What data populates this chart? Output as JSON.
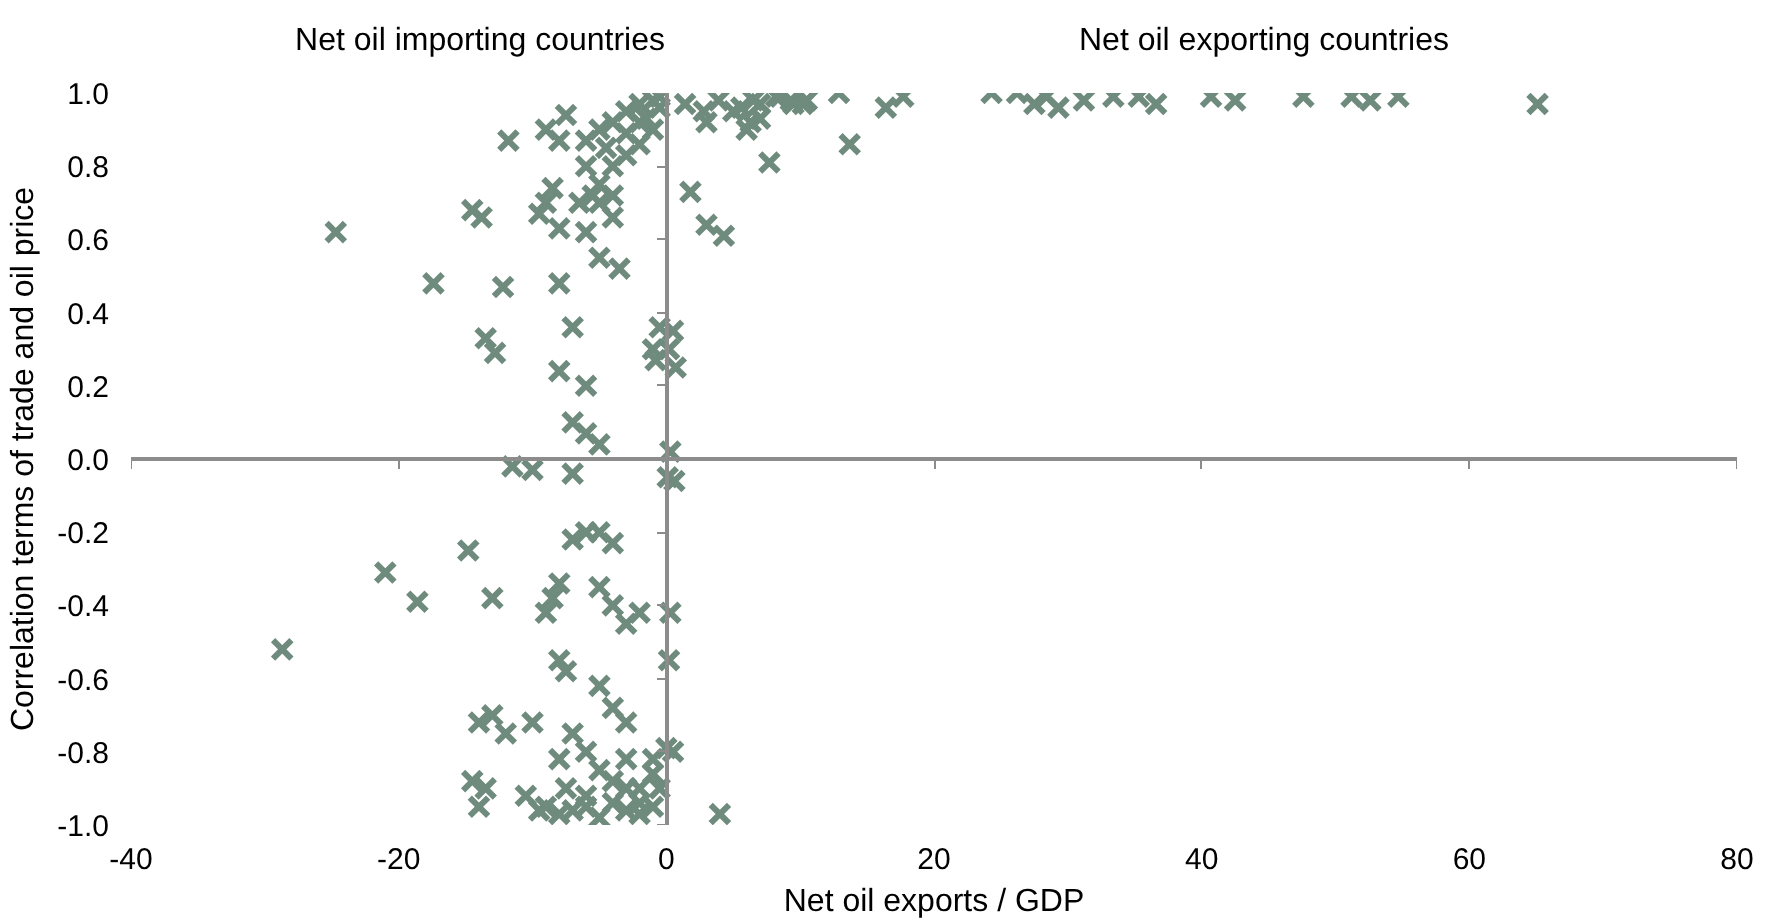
{
  "chart_data": {
    "type": "scatter",
    "xlabel": "Net oil exports / GDP",
    "ylabel": "Correlation terms of trade and oil price",
    "annotations": [
      "Net oil importing countries",
      "Net oil exporting countries"
    ],
    "xlim": [
      -40,
      80
    ],
    "xticks": [
      -40,
      -20,
      0,
      20,
      40,
      60,
      80
    ],
    "ylim": [
      -1.0,
      1.0
    ],
    "yticks": [
      {
        "value": -1.0,
        "label": "-1.0"
      },
      {
        "value": -0.8,
        "label": "-0.8"
      },
      {
        "value": -0.6,
        "label": "-0.6"
      },
      {
        "value": -0.4,
        "label": "-0.4"
      },
      {
        "value": -0.2,
        "label": "-0.2"
      },
      {
        "value": 0.0,
        "label": "0.0"
      },
      {
        "value": 0.2,
        "label": "0.2"
      },
      {
        "value": 0.4,
        "label": "0.4"
      },
      {
        "value": 0.6,
        "label": "0.6"
      },
      {
        "value": 0.8,
        "label": "0.8"
      },
      {
        "value": 1.0,
        "label": "1.0"
      }
    ],
    "marker": "cross",
    "series": [
      {
        "color": "#6e8b7d",
        "x": [
          1.4,
          2.8,
          3.9,
          5.6,
          6.3,
          7.0,
          8.2,
          9.3,
          10.2,
          12.9,
          13.7,
          16.4,
          17.7,
          24.3,
          26.2,
          27.5,
          28.4,
          29.3,
          31.2,
          33.4,
          35.3,
          36.6,
          40.7,
          42.5,
          47.6,
          51.2,
          52.6,
          54.7,
          65.1,
          3.0,
          5.0,
          6.0,
          6.5,
          7.0,
          7.7,
          8.5,
          9.5,
          10.5,
          1.8,
          3.0,
          4.3,
          0.5,
          0.2,
          0.7,
          0.3,
          0.1,
          0.6,
          0.2,
          4.0,
          0.5,
          0.3,
          -28.7,
          -24.7,
          -21.0,
          -18.6,
          -17.4,
          -14.5,
          -14.8,
          -13.8,
          -13.5,
          -12.8,
          -12.2,
          -13.0,
          -11.8,
          -11.5,
          -10.0,
          -14.0,
          -13.0,
          -12.0,
          -14.5,
          -14.0,
          -13.5,
          -10.0,
          -10.5,
          -9.5,
          -8.0,
          -7.0,
          -8.0,
          -6.0,
          -7.0,
          -6.0,
          -5.0,
          -7.0,
          -6.0,
          -7.0,
          -5.0,
          -4.0,
          -8.0,
          -9.0,
          -8.5,
          -5.0,
          -4.0,
          -3.0,
          -2.0,
          -8.0,
          -7.5,
          -5.0,
          -4.0,
          -3.0,
          -7.0,
          -6.0,
          -8.0,
          -5.0,
          -3.0,
          -1.0,
          -2.0,
          -6.0,
          -4.0,
          -3.0,
          -7.0,
          -8.0,
          -5.0,
          -2.0,
          -1.0,
          -0.5,
          -1.0,
          0.0,
          -4.0,
          -3.0,
          -2.0,
          -6.0,
          -9.0,
          -7.5,
          -9.0,
          -8.5,
          -9.5,
          -8.0,
          -9.0,
          -7.5,
          -8.0,
          -6.0,
          -5.0,
          -4.0,
          -3.0,
          -2.0,
          -1.0,
          -0.5,
          -6.0,
          -5.0,
          -4.0,
          -3.0,
          -5.0,
          -4.0,
          -6.0,
          -5.0,
          -3.5,
          -2.0,
          -1.0,
          -3.0,
          -4.5,
          -2.0,
          -0.5,
          -1.5,
          -6.5,
          -5.5,
          -4.0,
          -1.0,
          -0.5,
          -0.8
        ],
        "values": [
          0.97,
          0.95,
          0.98,
          0.96,
          0.92,
          0.97,
          0.99,
          0.98,
          0.97,
          1.0,
          0.86,
          0.96,
          0.99,
          1.0,
          1.0,
          0.97,
          0.99,
          0.96,
          0.98,
          0.99,
          0.99,
          0.97,
          0.99,
          0.98,
          0.99,
          0.99,
          0.98,
          0.99,
          0.97,
          0.92,
          0.95,
          0.9,
          0.98,
          0.93,
          0.81,
          0.99,
          0.97,
          0.98,
          0.73,
          0.64,
          0.61,
          0.35,
          0.3,
          0.25,
          0.02,
          -0.05,
          -0.06,
          -0.55,
          -0.97,
          -0.8,
          -0.42,
          -0.52,
          0.62,
          -0.31,
          -0.39,
          0.48,
          0.68,
          -0.25,
          0.66,
          0.33,
          0.29,
          0.47,
          -0.38,
          0.87,
          -0.02,
          -0.03,
          -0.72,
          -0.7,
          -0.75,
          -0.88,
          -0.95,
          -0.9,
          -0.72,
          -0.92,
          -0.96,
          0.48,
          0.36,
          0.24,
          0.2,
          0.1,
          0.07,
          0.04,
          -0.04,
          -0.2,
          -0.22,
          -0.2,
          -0.23,
          -0.34,
          -0.42,
          -0.38,
          -0.35,
          -0.4,
          -0.45,
          -0.42,
          -0.55,
          -0.58,
          -0.62,
          -0.68,
          -0.72,
          -0.75,
          -0.8,
          -0.82,
          -0.85,
          -0.82,
          -0.86,
          -0.9,
          -0.92,
          -0.94,
          -0.96,
          -0.96,
          -0.97,
          -0.98,
          -0.97,
          -0.95,
          -0.9,
          -0.82,
          -0.79,
          -0.88,
          -0.9,
          -0.94,
          -0.95,
          -0.95,
          -0.9,
          0.7,
          0.74,
          0.67,
          0.63,
          0.9,
          0.94,
          0.87,
          0.87,
          0.9,
          0.92,
          0.95,
          0.97,
          0.98,
          0.96,
          0.8,
          0.75,
          0.8,
          0.83,
          0.7,
          0.66,
          0.62,
          0.55,
          0.52,
          0.86,
          0.9,
          0.89,
          0.85,
          0.92,
          0.99,
          0.93,
          0.7,
          0.72,
          0.72,
          0.3,
          0.36,
          0.27
        ]
      }
    ]
  }
}
